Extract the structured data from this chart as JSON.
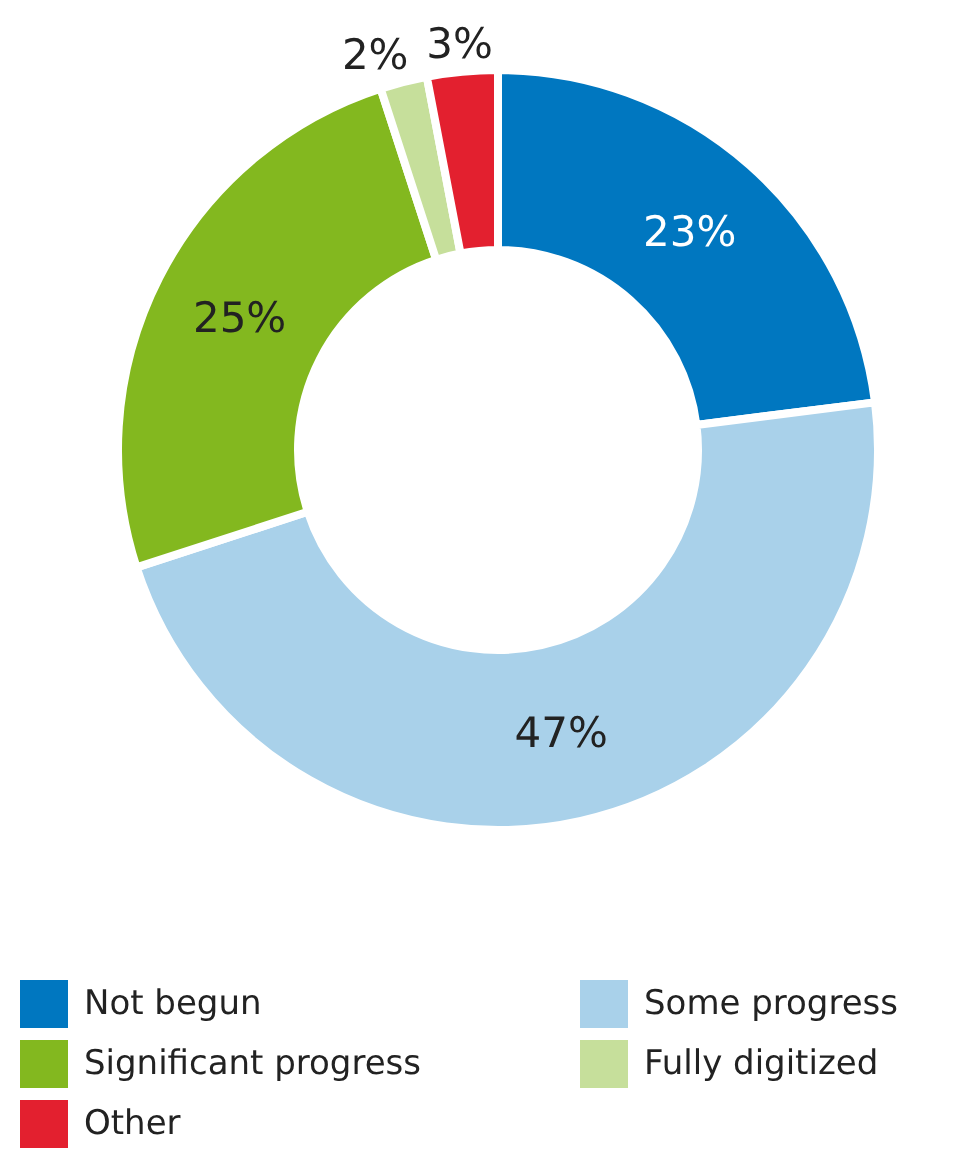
{
  "chart_data": {
    "type": "donut",
    "categories": [
      "Not begun",
      "Some progress",
      "Significant progress",
      "Fully digitized",
      "Other"
    ],
    "values": [
      23,
      47,
      25,
      2,
      3
    ],
    "colors": [
      "#0077c0",
      "#a9d1ea",
      "#83b81f",
      "#c6df9b",
      "#e3202f"
    ],
    "value_labels": [
      "23%",
      "47%",
      "25%",
      "2%",
      "3%"
    ],
    "legend": "bottom"
  }
}
